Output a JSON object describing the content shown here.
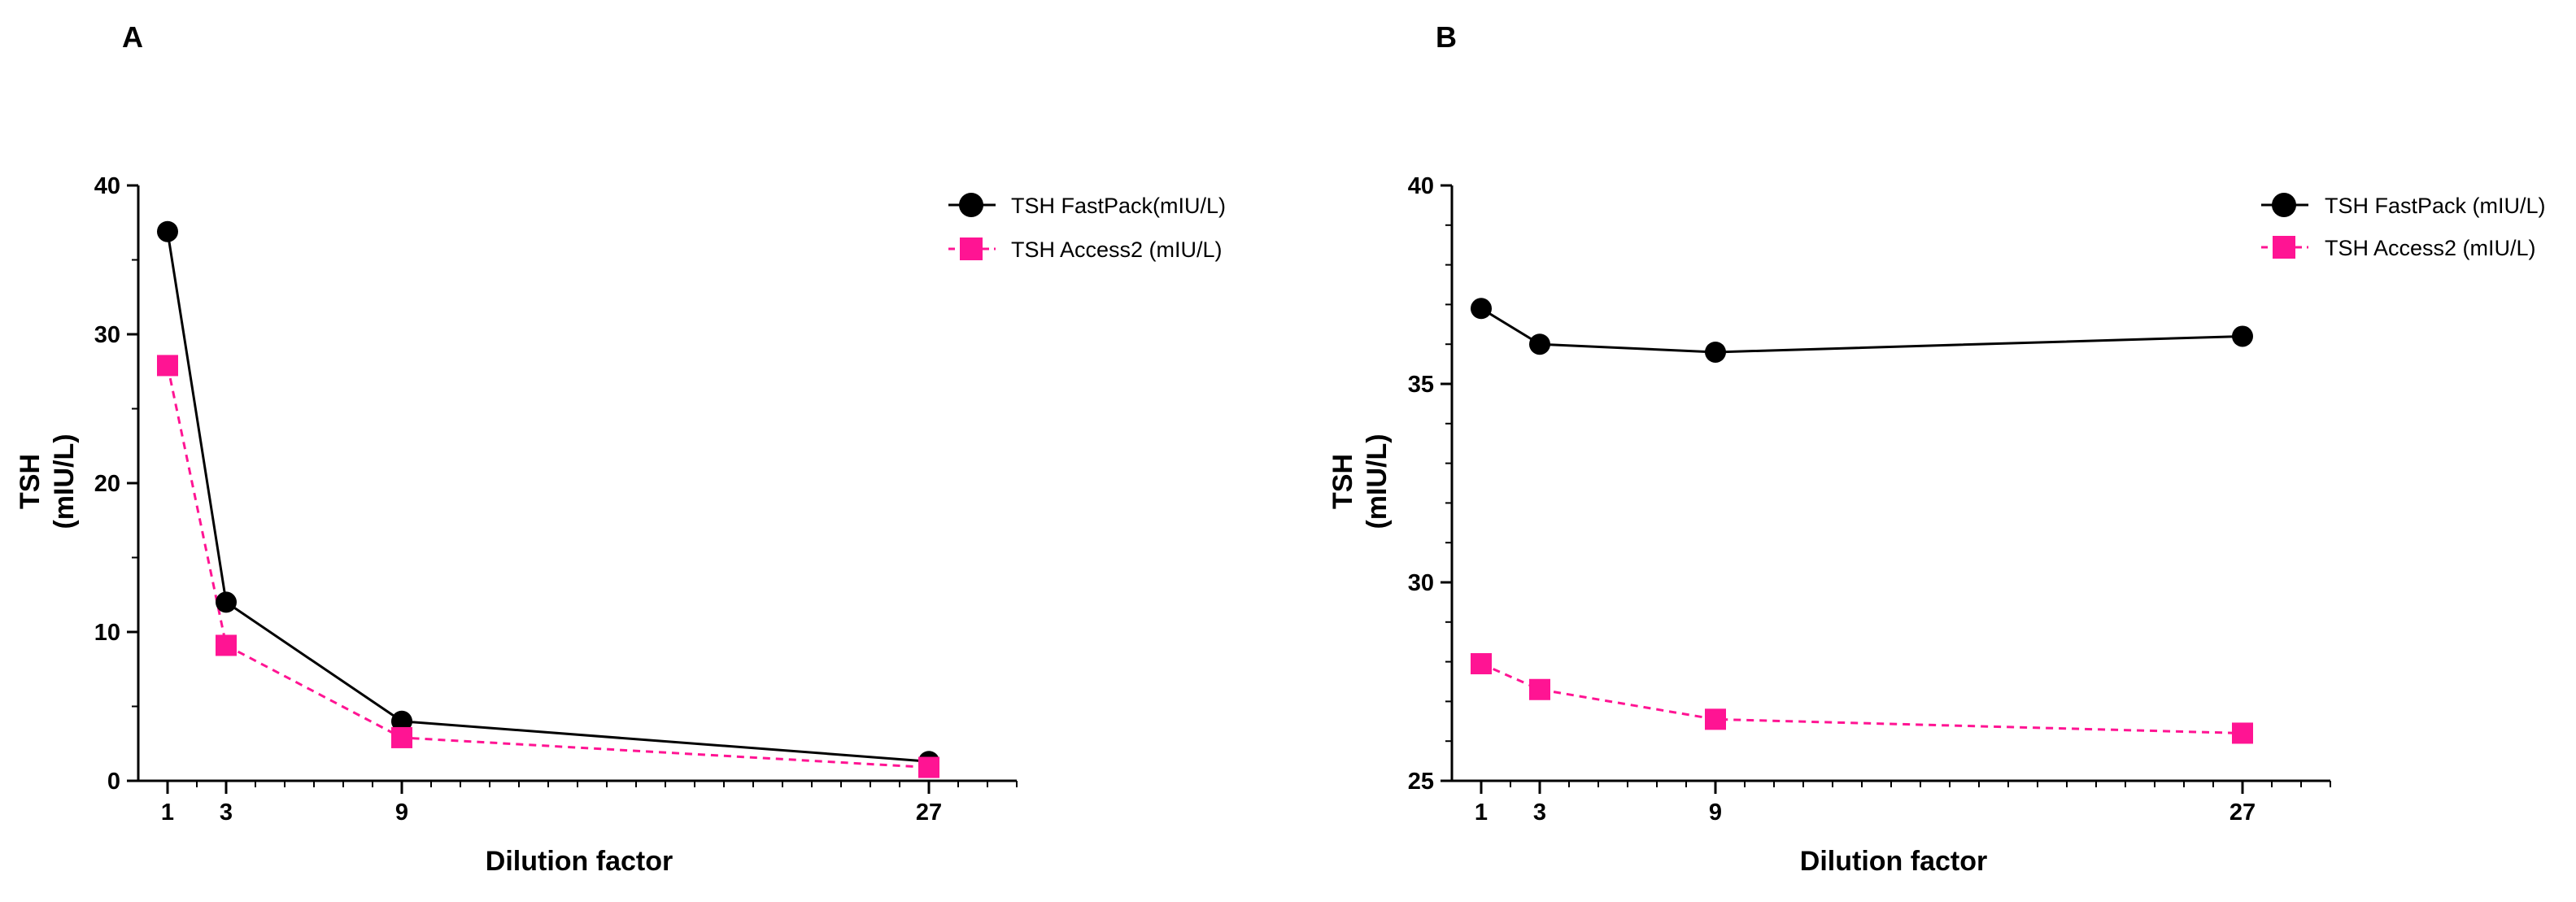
{
  "chart_data": [
    {
      "panel": "A",
      "type": "line",
      "xlabel": "Dilution factor",
      "ylabel_lines": [
        "TSH",
        "(mIU/L)"
      ],
      "x_ticks": [
        1,
        3,
        9,
        27
      ],
      "xlim": [
        0,
        30
      ],
      "ylim": [
        0,
        40
      ],
      "y_ticks": [
        0,
        10,
        20,
        30,
        40
      ],
      "legend_position": "top-right",
      "series": [
        {
          "name": "TSH FastPack(mIU/L)",
          "marker": "circle",
          "color": "#000000",
          "dashed": false,
          "x": [
            1,
            3,
            9,
            27
          ],
          "values": [
            36.9,
            12.0,
            4.0,
            1.3
          ]
        },
        {
          "name": "TSH Access2 (mIU/L)",
          "marker": "square",
          "color": "#ff1493",
          "dashed": true,
          "x": [
            1,
            3,
            9,
            27
          ],
          "values": [
            27.9,
            9.1,
            2.9,
            0.9
          ]
        }
      ]
    },
    {
      "panel": "B",
      "type": "line",
      "xlabel": "Dilution factor",
      "ylabel_lines": [
        "TSH",
        "(mIU/L)"
      ],
      "x_ticks": [
        1,
        3,
        9,
        27
      ],
      "xlim": [
        0,
        30
      ],
      "ylim": [
        25,
        40
      ],
      "y_ticks": [
        25,
        30,
        35,
        40
      ],
      "legend_position": "top-right",
      "series": [
        {
          "name": "TSH FastPack (mIU/L)",
          "marker": "circle",
          "color": "#000000",
          "dashed": false,
          "x": [
            1,
            3,
            9,
            27
          ],
          "values": [
            36.9,
            36.0,
            35.8,
            36.2
          ]
        },
        {
          "name": "TSH Access2 (mIU/L)",
          "marker": "square",
          "color": "#ff1493",
          "dashed": true,
          "x": [
            1,
            3,
            9,
            27
          ],
          "values": [
            27.95,
            27.3,
            26.55,
            26.2
          ]
        }
      ]
    }
  ]
}
